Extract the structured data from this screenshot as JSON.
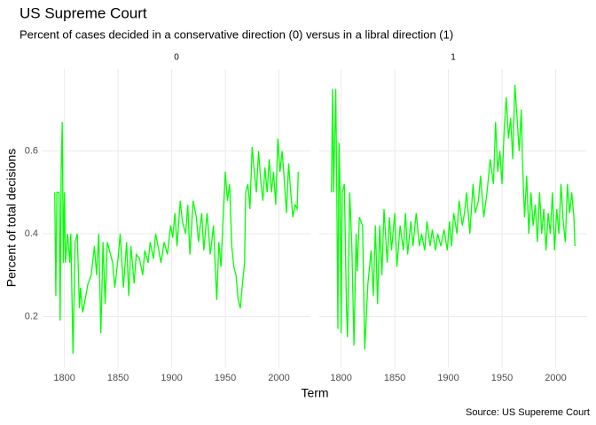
{
  "chart_data": {
    "type": "line",
    "title": "US Supreme Court",
    "subtitle": "Percent of cases decided in a conservative direction (0) versus in a libral direction (1)",
    "x_label": "Term",
    "y_label": "Percent of total decisions",
    "caption": "Source: US Supereme Court",
    "color": "#00ff00",
    "xlim": [
      1779.65,
      2029.35
    ],
    "xticks": [
      1800,
      1850,
      1900,
      1950,
      2000
    ],
    "ylim": [
      0.077,
      0.798
    ],
    "yticks": [
      0.2,
      0.4,
      0.6
    ],
    "grid": true,
    "x": [
      1791,
      1792,
      1793,
      1795,
      1796,
      1797,
      1798,
      1799,
      1800,
      1801,
      1803,
      1805,
      1806,
      1808,
      1810,
      1812,
      1814,
      1815,
      1817,
      1820,
      1822,
      1825,
      1828,
      1830,
      1832,
      1834,
      1836,
      1838,
      1840,
      1843,
      1845,
      1847,
      1850,
      1852,
      1855,
      1858,
      1860,
      1862,
      1865,
      1867,
      1870,
      1873,
      1875,
      1878,
      1880,
      1883,
      1885,
      1888,
      1890,
      1893,
      1896,
      1899,
      1901,
      1903,
      1905,
      1908,
      1910,
      1913,
      1915,
      1917,
      1920,
      1923,
      1925,
      1928,
      1930,
      1933,
      1936,
      1939,
      1942,
      1944,
      1946,
      1948,
      1950,
      1952,
      1954,
      1956,
      1958,
      1960,
      1962,
      1964,
      1966,
      1968,
      1969,
      1971,
      1973,
      1975,
      1977,
      1979,
      1981,
      1983,
      1985,
      1987,
      1989,
      1991,
      1993,
      1995,
      1997,
      1999,
      2001,
      2003,
      2005,
      2007,
      2009,
      2011,
      2013,
      2015,
      2017,
      2018
    ],
    "facets": [
      {
        "label": "0",
        "values": [
          0.5,
          0.25,
          0.5,
          0.5,
          0.19,
          0.55,
          0.67,
          0.33,
          0.5,
          0.33,
          0.4,
          0.33,
          0.4,
          0.11,
          0.38,
          0.4,
          0.22,
          0.27,
          0.21,
          0.25,
          0.28,
          0.3,
          0.37,
          0.3,
          0.4,
          0.16,
          0.38,
          0.23,
          0.38,
          0.35,
          0.33,
          0.27,
          0.34,
          0.4,
          0.27,
          0.38,
          0.25,
          0.37,
          0.28,
          0.35,
          0.34,
          0.3,
          0.36,
          0.33,
          0.38,
          0.34,
          0.4,
          0.36,
          0.33,
          0.38,
          0.35,
          0.42,
          0.39,
          0.45,
          0.37,
          0.48,
          0.43,
          0.4,
          0.47,
          0.35,
          0.48,
          0.44,
          0.38,
          0.45,
          0.36,
          0.45,
          0.35,
          0.42,
          0.24,
          0.38,
          0.32,
          0.44,
          0.55,
          0.48,
          0.52,
          0.37,
          0.32,
          0.3,
          0.24,
          0.22,
          0.28,
          0.33,
          0.5,
          0.52,
          0.46,
          0.61,
          0.55,
          0.5,
          0.6,
          0.53,
          0.48,
          0.56,
          0.5,
          0.58,
          0.5,
          0.55,
          0.47,
          0.63,
          0.55,
          0.6,
          0.53,
          0.45,
          0.57,
          0.5,
          0.44,
          0.47,
          0.46,
          0.55
        ]
      },
      {
        "label": "1",
        "values": [
          0.5,
          0.75,
          0.5,
          0.75,
          0.5,
          0.17,
          0.62,
          0.5,
          0.16,
          0.5,
          0.52,
          0.22,
          0.15,
          0.5,
          0.37,
          0.13,
          0.4,
          0.31,
          0.44,
          0.42,
          0.12,
          0.28,
          0.36,
          0.25,
          0.42,
          0.23,
          0.42,
          0.3,
          0.46,
          0.33,
          0.44,
          0.36,
          0.45,
          0.32,
          0.42,
          0.36,
          0.45,
          0.35,
          0.43,
          0.37,
          0.45,
          0.37,
          0.4,
          0.36,
          0.43,
          0.37,
          0.41,
          0.36,
          0.4,
          0.37,
          0.41,
          0.36,
          0.43,
          0.37,
          0.45,
          0.4,
          0.48,
          0.42,
          0.45,
          0.5,
          0.4,
          0.52,
          0.45,
          0.48,
          0.54,
          0.44,
          0.5,
          0.58,
          0.52,
          0.67,
          0.55,
          0.6,
          0.52,
          0.65,
          0.73,
          0.63,
          0.68,
          0.58,
          0.76,
          0.68,
          0.6,
          0.7,
          0.58,
          0.44,
          0.54,
          0.4,
          0.5,
          0.42,
          0.47,
          0.38,
          0.5,
          0.4,
          0.46,
          0.36,
          0.45,
          0.4,
          0.5,
          0.36,
          0.46,
          0.4,
          0.52,
          0.43,
          0.38,
          0.52,
          0.45,
          0.5,
          0.44,
          0.37
        ]
      }
    ]
  }
}
